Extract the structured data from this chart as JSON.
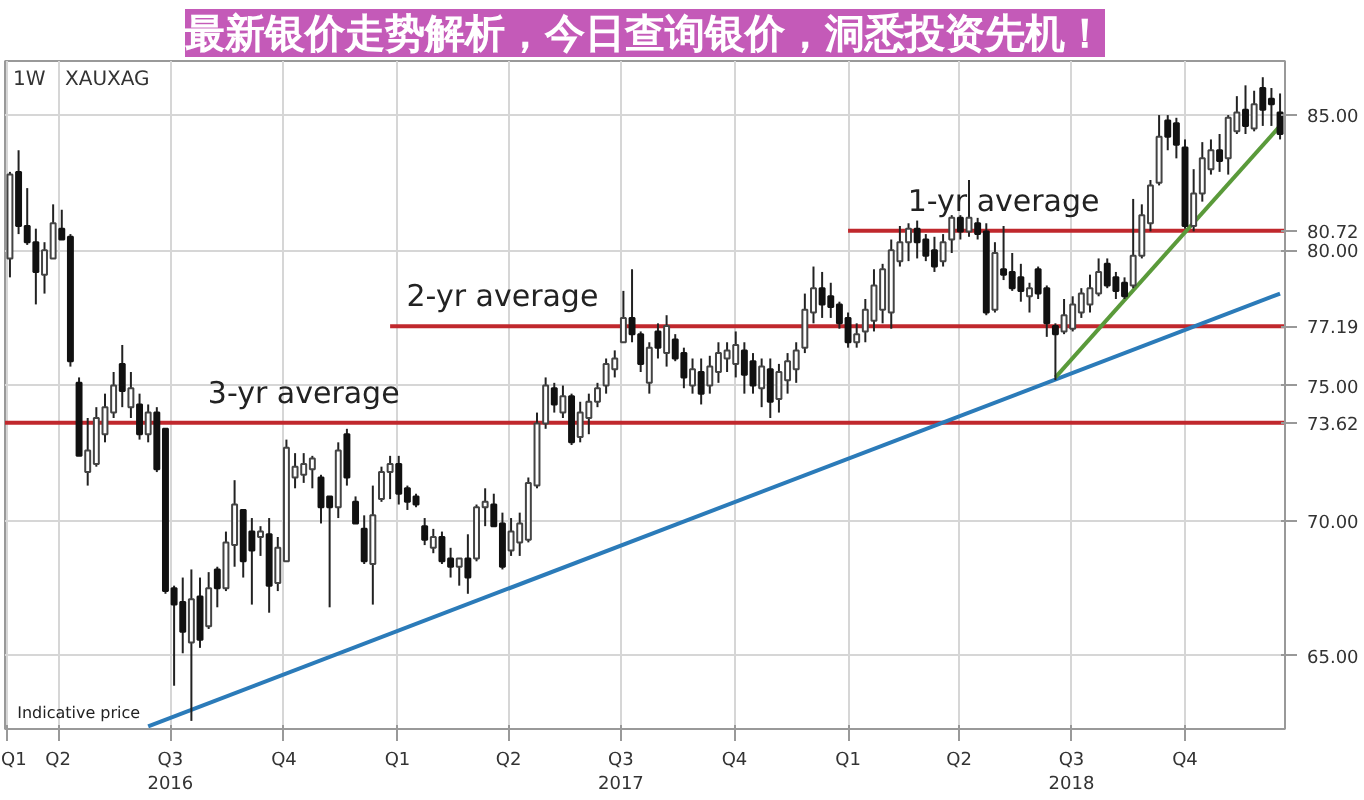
{
  "chart_data": {
    "type": "candlestick",
    "title": "XAUXAG",
    "subtitle": "1W",
    "x": [
      "2016-02-22",
      "2016-02-29",
      "2016-03-07",
      "2016-03-14",
      "2016-03-21",
      "2016-03-28",
      "2016-04-04",
      "2016-04-11",
      "2016-04-18",
      "2016-04-25",
      "2016-05-02",
      "2016-05-09",
      "2016-05-16",
      "2016-05-23",
      "2016-05-30",
      "2016-06-06",
      "2016-06-13",
      "2016-06-20",
      "2016-06-27",
      "2016-07-04",
      "2016-07-11",
      "2016-07-18",
      "2016-07-25",
      "2016-08-01",
      "2016-08-08",
      "2016-08-15",
      "2016-08-22",
      "2016-08-29",
      "2016-09-05",
      "2016-09-12",
      "2016-09-19",
      "2016-09-26",
      "2016-10-03",
      "2016-10-10",
      "2016-10-17",
      "2016-10-24",
      "2016-10-31",
      "2016-11-07",
      "2016-11-14",
      "2016-11-21",
      "2016-11-28",
      "2016-12-05",
      "2016-12-12",
      "2016-12-19",
      "2016-12-26",
      "2017-01-02",
      "2017-01-09",
      "2017-01-16",
      "2017-01-23",
      "2017-01-30",
      "2017-02-06",
      "2017-02-13",
      "2017-02-20",
      "2017-02-27",
      "2017-03-06",
      "2017-03-13",
      "2017-03-20",
      "2017-03-27",
      "2017-04-03",
      "2017-04-10",
      "2017-04-17",
      "2017-04-24",
      "2017-05-01",
      "2017-05-08",
      "2017-05-15",
      "2017-05-22",
      "2017-05-29",
      "2017-06-05",
      "2017-06-12",
      "2017-06-19",
      "2017-06-26",
      "2017-07-03",
      "2017-07-10",
      "2017-07-17",
      "2017-07-24",
      "2017-07-31",
      "2017-08-07",
      "2017-08-14",
      "2017-08-21",
      "2017-08-28",
      "2017-09-04",
      "2017-09-11",
      "2017-09-18",
      "2017-09-25",
      "2017-10-02",
      "2017-10-09",
      "2017-10-16",
      "2017-10-23",
      "2017-10-30",
      "2017-11-06",
      "2017-11-13",
      "2017-11-20",
      "2017-11-27",
      "2017-12-04",
      "2017-12-11",
      "2017-12-18",
      "2017-12-25",
      "2018-01-01",
      "2018-01-08",
      "2018-01-15",
      "2018-01-22",
      "2018-01-29",
      "2018-02-05",
      "2018-02-12",
      "2018-02-19",
      "2018-02-26",
      "2018-03-05",
      "2018-03-12",
      "2018-03-19",
      "2018-03-26",
      "2018-04-02",
      "2018-04-09",
      "2018-04-16",
      "2018-04-23",
      "2018-04-30",
      "2018-05-07",
      "2018-05-14",
      "2018-05-21",
      "2018-05-28",
      "2018-06-04",
      "2018-06-11",
      "2018-06-18",
      "2018-06-25",
      "2018-07-02",
      "2018-07-09",
      "2018-07-16",
      "2018-07-23",
      "2018-07-30",
      "2018-08-06",
      "2018-08-13",
      "2018-08-20",
      "2018-08-27",
      "2018-09-03",
      "2018-09-10",
      "2018-09-17",
      "2018-09-24",
      "2018-10-01",
      "2018-10-08",
      "2018-10-15",
      "2018-10-22",
      "2018-10-29",
      "2018-11-05",
      "2018-11-12",
      "2018-11-19",
      "2018-11-26",
      "2018-12-03",
      "2018-12-10",
      "2018-12-17"
    ],
    "ohlc": [
      [
        79.7,
        82.9,
        79.0,
        82.8
      ],
      [
        82.9,
        83.7,
        80.6,
        80.9
      ],
      [
        80.9,
        82.3,
        80.2,
        80.3
      ],
      [
        80.3,
        80.8,
        78.0,
        79.2
      ],
      [
        79.1,
        80.3,
        78.4,
        80.0
      ],
      [
        79.7,
        81.7,
        79.7,
        81.0
      ],
      [
        80.8,
        81.5,
        80.4,
        80.4
      ],
      [
        80.5,
        80.6,
        75.7,
        75.9
      ],
      [
        75.1,
        75.3,
        72.4,
        72.4
      ],
      [
        71.8,
        73.8,
        71.3,
        72.6
      ],
      [
        72.1,
        74.2,
        72.0,
        73.8
      ],
      [
        73.2,
        74.7,
        72.9,
        74.2
      ],
      [
        74.0,
        75.5,
        73.8,
        75.0
      ],
      [
        75.8,
        76.5,
        74.2,
        74.8
      ],
      [
        74.2,
        75.5,
        73.8,
        74.9
      ],
      [
        74.3,
        74.7,
        73.0,
        73.2
      ],
      [
        73.2,
        74.3,
        72.9,
        74.0
      ],
      [
        74.0,
        74.2,
        71.8,
        71.9
      ],
      [
        73.4,
        73.4,
        67.3,
        67.4
      ],
      [
        67.5,
        67.6,
        63.9,
        66.9
      ],
      [
        67.0,
        67.9,
        65.1,
        65.9
      ],
      [
        65.5,
        68.2,
        62.6,
        67.1
      ],
      [
        67.2,
        67.9,
        65.3,
        65.6
      ],
      [
        66.1,
        68.1,
        66.0,
        67.5
      ],
      [
        68.2,
        68.3,
        66.8,
        67.5
      ],
      [
        67.5,
        69.6,
        67.4,
        69.2
      ],
      [
        69.1,
        71.5,
        68.3,
        70.6
      ],
      [
        70.4,
        70.4,
        67.9,
        68.5
      ],
      [
        69.6,
        70.1,
        66.9,
        68.9
      ],
      [
        69.4,
        69.8,
        68.7,
        69.6
      ],
      [
        69.5,
        70.1,
        66.6,
        67.6
      ],
      [
        67.7,
        69.4,
        67.4,
        69.0
      ],
      [
        68.5,
        73.0,
        68.5,
        72.7
      ],
      [
        71.6,
        72.5,
        71.2,
        72.0
      ],
      [
        71.7,
        72.5,
        71.4,
        72.1
      ],
      [
        71.9,
        72.4,
        71.2,
        72.3
      ],
      [
        71.6,
        71.7,
        69.9,
        70.5
      ],
      [
        70.9,
        70.9,
        66.8,
        70.5
      ],
      [
        70.5,
        72.9,
        70.1,
        72.6
      ],
      [
        73.2,
        73.4,
        71.3,
        71.6
      ],
      [
        70.7,
        70.9,
        69.9,
        69.9
      ],
      [
        69.7,
        70.2,
        68.4,
        68.5
      ],
      [
        68.4,
        71.3,
        66.9,
        70.2
      ],
      [
        70.8,
        72.0,
        70.7,
        71.8
      ],
      [
        71.8,
        72.4,
        70.8,
        72.1
      ],
      [
        72.1,
        72.4,
        70.6,
        71.0
      ],
      [
        71.2,
        71.3,
        70.4,
        70.7
      ],
      [
        70.9,
        71.0,
        70.5,
        70.6
      ],
      [
        69.8,
        70.1,
        69.1,
        69.3
      ],
      [
        69.0,
        69.7,
        68.8,
        69.4
      ],
      [
        69.4,
        69.6,
        68.4,
        68.5
      ],
      [
        68.6,
        69.0,
        67.9,
        68.3
      ],
      [
        68.3,
        68.6,
        67.6,
        68.6
      ],
      [
        68.6,
        69.5,
        67.3,
        67.9
      ],
      [
        68.6,
        70.6,
        68.5,
        70.5
      ],
      [
        70.5,
        71.2,
        69.8,
        70.7
      ],
      [
        70.6,
        71.0,
        69.8,
        69.8
      ],
      [
        69.9,
        70.3,
        68.2,
        68.3
      ],
      [
        68.9,
        70.1,
        68.7,
        69.6
      ],
      [
        69.2,
        70.3,
        68.7,
        69.9
      ],
      [
        69.3,
        71.6,
        69.2,
        71.4
      ],
      [
        71.3,
        74.0,
        71.2,
        73.6
      ],
      [
        73.6,
        75.3,
        73.4,
        75.0
      ],
      [
        74.9,
        75.1,
        74.0,
        74.3
      ],
      [
        74.0,
        75.0,
        73.8,
        74.6
      ],
      [
        74.6,
        74.7,
        72.8,
        72.9
      ],
      [
        73.1,
        74.4,
        72.9,
        74.0
      ],
      [
        73.8,
        74.7,
        73.2,
        74.4
      ],
      [
        74.4,
        75.1,
        74.2,
        74.9
      ],
      [
        75.0,
        76.0,
        74.7,
        75.8
      ],
      [
        75.6,
        76.3,
        75.3,
        76.0
      ],
      [
        76.6,
        78.5,
        76.6,
        77.5
      ],
      [
        77.5,
        79.3,
        76.6,
        76.9
      ],
      [
        76.9,
        77.0,
        75.5,
        75.8
      ],
      [
        75.1,
        76.6,
        74.7,
        76.4
      ],
      [
        77.0,
        77.3,
        76.0,
        76.4
      ],
      [
        76.2,
        77.6,
        75.7,
        77.2
      ],
      [
        76.7,
        76.9,
        75.9,
        76.0
      ],
      [
        76.2,
        76.4,
        74.9,
        75.3
      ],
      [
        75.0,
        76.0,
        74.7,
        75.6
      ],
      [
        75.5,
        76.0,
        74.3,
        74.7
      ],
      [
        75.0,
        76.1,
        74.7,
        75.7
      ],
      [
        75.5,
        76.6,
        75.1,
        76.2
      ],
      [
        76.0,
        76.6,
        75.5,
        76.3
      ],
      [
        75.8,
        77.0,
        75.3,
        76.5
      ],
      [
        76.3,
        76.6,
        74.7,
        75.4
      ],
      [
        75.9,
        76.2,
        74.7,
        75.0
      ],
      [
        74.9,
        76.0,
        74.2,
        75.7
      ],
      [
        75.6,
        76.0,
        73.8,
        74.4
      ],
      [
        74.5,
        75.8,
        74.0,
        75.5
      ],
      [
        75.2,
        76.2,
        74.7,
        75.9
      ],
      [
        75.6,
        76.6,
        75.1,
        76.3
      ],
      [
        76.4,
        78.4,
        76.2,
        77.8
      ],
      [
        77.7,
        79.4,
        77.3,
        78.6
      ],
      [
        78.6,
        79.2,
        77.5,
        78.0
      ],
      [
        78.3,
        78.8,
        77.5,
        77.9
      ],
      [
        78.0,
        78.1,
        77.1,
        77.3
      ],
      [
        77.5,
        77.7,
        76.4,
        76.6
      ],
      [
        76.6,
        77.3,
        76.4,
        76.9
      ],
      [
        77.0,
        78.2,
        76.6,
        77.8
      ],
      [
        77.4,
        79.3,
        77.0,
        78.7
      ],
      [
        77.8,
        79.5,
        77.3,
        79.3
      ],
      [
        77.7,
        80.4,
        77.1,
        80.0
      ],
      [
        79.6,
        80.9,
        79.4,
        80.3
      ],
      [
        80.3,
        81.0,
        79.6,
        80.8
      ],
      [
        80.8,
        81.1,
        79.7,
        80.3
      ],
      [
        80.4,
        80.6,
        79.6,
        79.8
      ],
      [
        80.0,
        80.5,
        79.2,
        79.4
      ],
      [
        79.6,
        80.6,
        79.4,
        80.3
      ],
      [
        80.4,
        81.3,
        79.9,
        81.2
      ],
      [
        81.2,
        81.3,
        80.4,
        80.7
      ],
      [
        80.7,
        82.6,
        80.5,
        81.2
      ],
      [
        81.0,
        81.2,
        80.4,
        80.6
      ],
      [
        80.7,
        81.0,
        77.6,
        77.7
      ],
      [
        77.8,
        80.3,
        77.7,
        79.9
      ],
      [
        79.3,
        80.9,
        78.9,
        79.1
      ],
      [
        79.2,
        79.9,
        78.5,
        78.6
      ],
      [
        79.0,
        79.5,
        78.1,
        78.5
      ],
      [
        78.3,
        78.8,
        77.7,
        78.6
      ],
      [
        79.3,
        79.4,
        78.2,
        78.4
      ],
      [
        78.6,
        78.7,
        76.8,
        77.3
      ],
      [
        77.2,
        77.3,
        75.2,
        76.9
      ],
      [
        77.0,
        78.2,
        76.9,
        77.6
      ],
      [
        77.1,
        78.3,
        77.0,
        78.0
      ],
      [
        77.7,
        78.6,
        77.5,
        78.4
      ],
      [
        78.0,
        79.1,
        77.7,
        78.6
      ],
      [
        78.4,
        79.7,
        78.3,
        79.2
      ],
      [
        79.5,
        79.7,
        78.6,
        78.7
      ],
      [
        79.0,
        79.2,
        78.2,
        78.5
      ],
      [
        78.8,
        79.0,
        78.2,
        78.3
      ],
      [
        78.7,
        81.9,
        78.6,
        79.8
      ],
      [
        79.8,
        81.7,
        79.7,
        81.3
      ],
      [
        81.0,
        82.6,
        80.7,
        82.4
      ],
      [
        82.5,
        85.0,
        82.4,
        84.2
      ],
      [
        84.8,
        85.0,
        83.7,
        84.2
      ],
      [
        84.7,
        84.9,
        83.4,
        83.9
      ],
      [
        83.8,
        84.1,
        80.8,
        80.9
      ],
      [
        80.9,
        83.0,
        80.7,
        82.1
      ],
      [
        82.1,
        84.0,
        81.8,
        83.4
      ],
      [
        83.0,
        84.1,
        82.8,
        83.7
      ],
      [
        83.7,
        84.3,
        82.9,
        83.3
      ],
      [
        83.4,
        85.0,
        82.8,
        84.9
      ],
      [
        84.4,
        85.7,
        84.3,
        85.1
      ],
      [
        85.2,
        86.1,
        84.3,
        84.6
      ],
      [
        84.5,
        85.9,
        84.4,
        85.4
      ],
      [
        86.0,
        86.4,
        84.6,
        85.2
      ],
      [
        85.6,
        86.0,
        84.6,
        85.4
      ],
      [
        85.1,
        85.8,
        84.1,
        84.3
      ]
    ],
    "series": [
      {
        "type": "line",
        "color": "#c0282d",
        "x": [
          "2016-02-18",
          "2018-12-21"
        ],
        "values": [
          73.62,
          73.62
        ],
        "value_labels": [
          null,
          "73.62"
        ]
      },
      {
        "type": "line",
        "color": "#c0282d",
        "x": [
          "2016-12-26",
          "2018-12-21"
        ],
        "values": [
          77.19,
          77.19
        ],
        "value_labels": [
          null,
          "77.19"
        ]
      },
      {
        "type": "line",
        "color": "#c0282d",
        "x": [
          "2018-01-01",
          "2018-12-21"
        ],
        "values": [
          80.72,
          80.72
        ],
        "value_labels": [
          null,
          "80.72"
        ]
      },
      {
        "type": "line",
        "color": "#2b7bb9",
        "x": [
          "2016-06-13",
          "2018-12-17"
        ],
        "values": [
          62.4,
          78.4
        ]
      },
      {
        "type": "line",
        "color": "#5a9a3a",
        "x": [
          "2018-06-18",
          "2018-12-17"
        ],
        "values": [
          75.3,
          84.6
        ]
      }
    ],
    "annotations": [
      {
        "text": "1-yr average",
        "x": "2018-05-07",
        "y": 80.72
      },
      {
        "text": "2-yr average",
        "x": "2017-03-27",
        "y": 77.19
      },
      {
        "text": "3-yr average",
        "x": "2016-10-17",
        "y": 73.62
      },
      {
        "text": "Indicative price",
        "x": "2016-06-13",
        "y": 62.4
      },
      "最新银价走势解析，今日查询银价，洞悉投资先机！"
    ],
    "xlim": [
      "2016-02-18",
      "2018-12-21"
    ],
    "xticks": [
      {
        "value": "2016-02-19",
        "label": "Q1"
      },
      {
        "value": "2016-04-01",
        "label": "Q2"
      },
      {
        "value": "2016-07-01",
        "label": "Q3\n2016"
      },
      {
        "value": "2016-10-01",
        "label": "Q4"
      },
      {
        "value": "2017-01-01",
        "label": "Q1"
      },
      {
        "value": "2017-04-01",
        "label": "Q2"
      },
      {
        "value": "2017-07-01",
        "label": "Q3\n2017"
      },
      {
        "value": "2017-10-01",
        "label": "Q4"
      },
      {
        "value": "2018-01-01",
        "label": "Q1"
      },
      {
        "value": "2018-04-01",
        "label": "Q2"
      },
      {
        "value": "2018-07-01",
        "label": "Q3\n2018"
      },
      {
        "value": "2018-10-01",
        "label": "Q4"
      }
    ],
    "ylim": [
      62.3,
      87.0
    ],
    "yticks": [
      {
        "value": 65,
        "label": "65.00"
      },
      {
        "value": 70,
        "label": "70.00"
      },
      {
        "value": 75,
        "label": "75.00"
      },
      {
        "value": 80,
        "label": "80.00"
      },
      {
        "value": 85,
        "label": "85.00"
      }
    ],
    "grid": true
  }
}
